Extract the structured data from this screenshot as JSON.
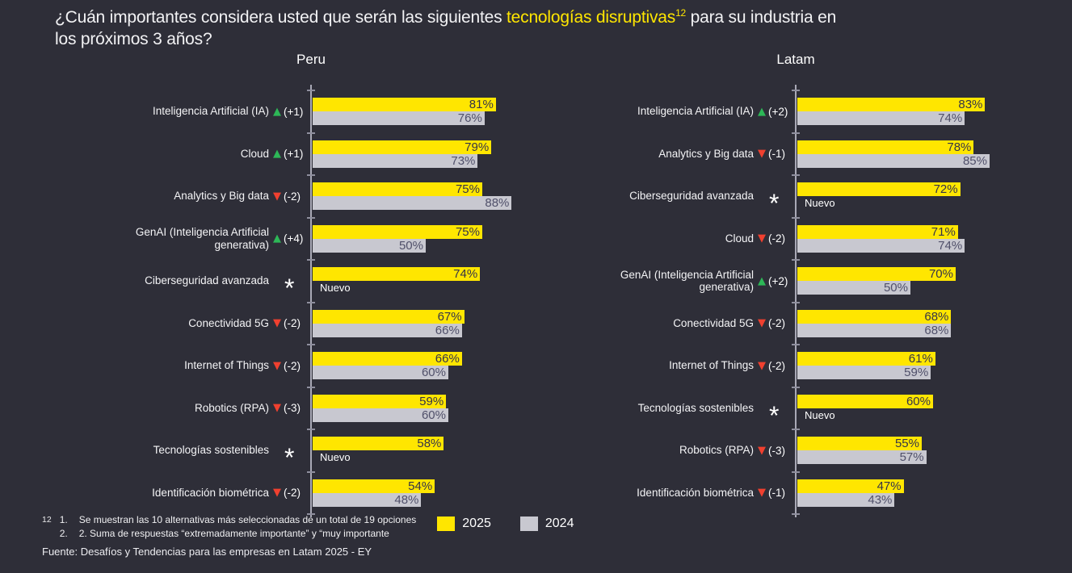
{
  "title": {
    "pre": "¿Cuán importantes considera usted que serán las siguientes ",
    "highlight": "tecnologías disruptivas",
    "sup": "12",
    "post_line1": " para su industria en",
    "line2": "los próximos 3 años?"
  },
  "colors": {
    "background": "#2e2e38",
    "accent_yellow": "#ffe600",
    "bar_2024": "#c8c8d0",
    "positive_green": "#2db757",
    "negative_red": "#f0402f",
    "axis": "#a9a9b6"
  },
  "chart_data": [
    {
      "type": "bar",
      "orientation": "horizontal",
      "title": "Peru",
      "xlim": [
        0,
        100
      ],
      "unit": "%",
      "grid": false,
      "categories": [
        "Inteligencia Artificial (IA)",
        "Cloud",
        "Analytics y Big data",
        "GenAI (Inteligencia Artificial\ngenerativa)",
        "Ciberseguridad avanzada",
        "Conectividad 5G",
        "Internet of Things",
        "Robotics (RPA)",
        "Tecnologías sostenibles",
        "Identificación biométrica"
      ],
      "changes": [
        {
          "dir": "up",
          "label": "(+1)"
        },
        {
          "dir": "up",
          "label": "(+1)"
        },
        {
          "dir": "down",
          "label": "(-2)"
        },
        {
          "dir": "up",
          "label": "(+4)"
        },
        {
          "dir": "new",
          "label": "Nuevo"
        },
        {
          "dir": "down",
          "label": "(-2)"
        },
        {
          "dir": "down",
          "label": "(-2)"
        },
        {
          "dir": "down",
          "label": "(-3)"
        },
        {
          "dir": "new",
          "label": "Nuevo"
        },
        {
          "dir": "down",
          "label": "(-2)"
        }
      ],
      "series": [
        {
          "name": "2025",
          "color": "#ffe600",
          "values": [
            81,
            79,
            75,
            75,
            74,
            67,
            66,
            59,
            58,
            54
          ]
        },
        {
          "name": "2024",
          "color": "#c8c8d0",
          "values": [
            76,
            73,
            88,
            50,
            null,
            66,
            60,
            60,
            null,
            48
          ]
        }
      ]
    },
    {
      "type": "bar",
      "orientation": "horizontal",
      "title": "Latam",
      "xlim": [
        0,
        100
      ],
      "unit": "%",
      "grid": false,
      "categories": [
        "Inteligencia Artificial (IA)",
        "Analytics y Big data",
        "Ciberseguridad avanzada",
        "Cloud",
        "GenAI (Inteligencia Artificial\ngenerativa)",
        "Conectividad 5G",
        "Internet of Things",
        "Tecnologías sostenibles",
        "Robotics (RPA)",
        "Identificación biométrica"
      ],
      "changes": [
        {
          "dir": "up",
          "label": "(+2)"
        },
        {
          "dir": "down",
          "label": "(-1)"
        },
        {
          "dir": "new",
          "label": "Nuevo"
        },
        {
          "dir": "down",
          "label": "(-2)"
        },
        {
          "dir": "up",
          "label": "(+2)"
        },
        {
          "dir": "down",
          "label": "(-2)"
        },
        {
          "dir": "down",
          "label": "(-2)"
        },
        {
          "dir": "new",
          "label": "Nuevo"
        },
        {
          "dir": "down",
          "label": "(-3)"
        },
        {
          "dir": "down",
          "label": "(-1)"
        }
      ],
      "series": [
        {
          "name": "2025",
          "color": "#ffe600",
          "values": [
            83,
            78,
            72,
            71,
            70,
            68,
            61,
            60,
            55,
            47
          ]
        },
        {
          "name": "2024",
          "color": "#c8c8d0",
          "values": [
            74,
            85,
            null,
            74,
            50,
            68,
            59,
            null,
            57,
            43
          ]
        }
      ]
    }
  ],
  "legend": {
    "items": [
      {
        "label": "2025",
        "color": "#ffe600"
      },
      {
        "label": "2024",
        "color": "#c8c8d0"
      }
    ]
  },
  "footnotes": {
    "sup": "12",
    "items": [
      {
        "marker": "1.",
        "text": "Se muestran las 10 alternativas más seleccionadas de un total de 19 opciones"
      },
      {
        "marker": "2.",
        "text": "2. Suma de respuestas “extremadamente importante” y “muy importante"
      }
    ]
  },
  "source": "Fuente: Desafíos y Tendencias para las empresas en Latam 2025 - EY"
}
